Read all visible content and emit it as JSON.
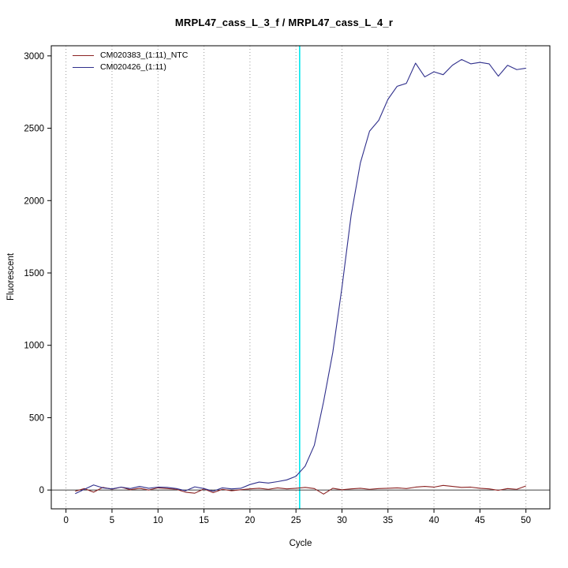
{
  "chart_data": {
    "type": "line",
    "title": "MRPL47_cass_L_3_f / MRPL47_cass_L_4_r",
    "xlabel": "Cycle",
    "ylabel": "Fluorescent",
    "xlim": [
      -1.6,
      52.6
    ],
    "ylim": [
      -130,
      3070
    ],
    "xticks": [
      0,
      5,
      10,
      15,
      20,
      25,
      30,
      35,
      40,
      45,
      50
    ],
    "yticks": [
      0,
      500,
      1000,
      1500,
      2000,
      2500,
      3000
    ],
    "grid": "vertical-dotted",
    "grid_color": "#9a9a9a",
    "threshold_line": {
      "x": 25.4,
      "color": "#00e8ee"
    },
    "zero_line": {
      "y": 0,
      "color": "#000000"
    },
    "legend_position": "top-left",
    "x": [
      1,
      2,
      3,
      4,
      5,
      6,
      7,
      8,
      9,
      10,
      11,
      12,
      13,
      14,
      15,
      16,
      17,
      18,
      19,
      20,
      21,
      22,
      23,
      24,
      25,
      26,
      27,
      28,
      29,
      30,
      31,
      32,
      33,
      34,
      35,
      36,
      37,
      38,
      39,
      40,
      41,
      42,
      43,
      44,
      45,
      46,
      47,
      48,
      49,
      50
    ],
    "series": [
      {
        "name": "CM020383_(1:11)_NTC",
        "color": "#8b2323",
        "values": [
          -8,
          10,
          -15,
          18,
          6,
          20,
          2,
          12,
          0,
          15,
          10,
          5,
          -15,
          -22,
          8,
          -18,
          5,
          -5,
          2,
          8,
          12,
          5,
          15,
          8,
          12,
          18,
          10,
          -28,
          12,
          2,
          8,
          12,
          5,
          10,
          12,
          15,
          10,
          20,
          25,
          20,
          32,
          25,
          18,
          20,
          12,
          8,
          -2,
          10,
          5,
          28
        ]
      },
      {
        "name": "CM020426_(1:11)",
        "color": "#30308c",
        "values": [
          -25,
          5,
          35,
          15,
          8,
          20,
          10,
          25,
          12,
          20,
          18,
          10,
          -5,
          22,
          10,
          -8,
          15,
          8,
          12,
          38,
          55,
          48,
          58,
          70,
          95,
          165,
          310,
          610,
          950,
          1400,
          1900,
          2260,
          2480,
          2555,
          2700,
          2790,
          2810,
          2950,
          2855,
          2890,
          2870,
          2935,
          2975,
          2945,
          2955,
          2945,
          2860,
          2935,
          2905,
          2915
        ]
      }
    ]
  }
}
